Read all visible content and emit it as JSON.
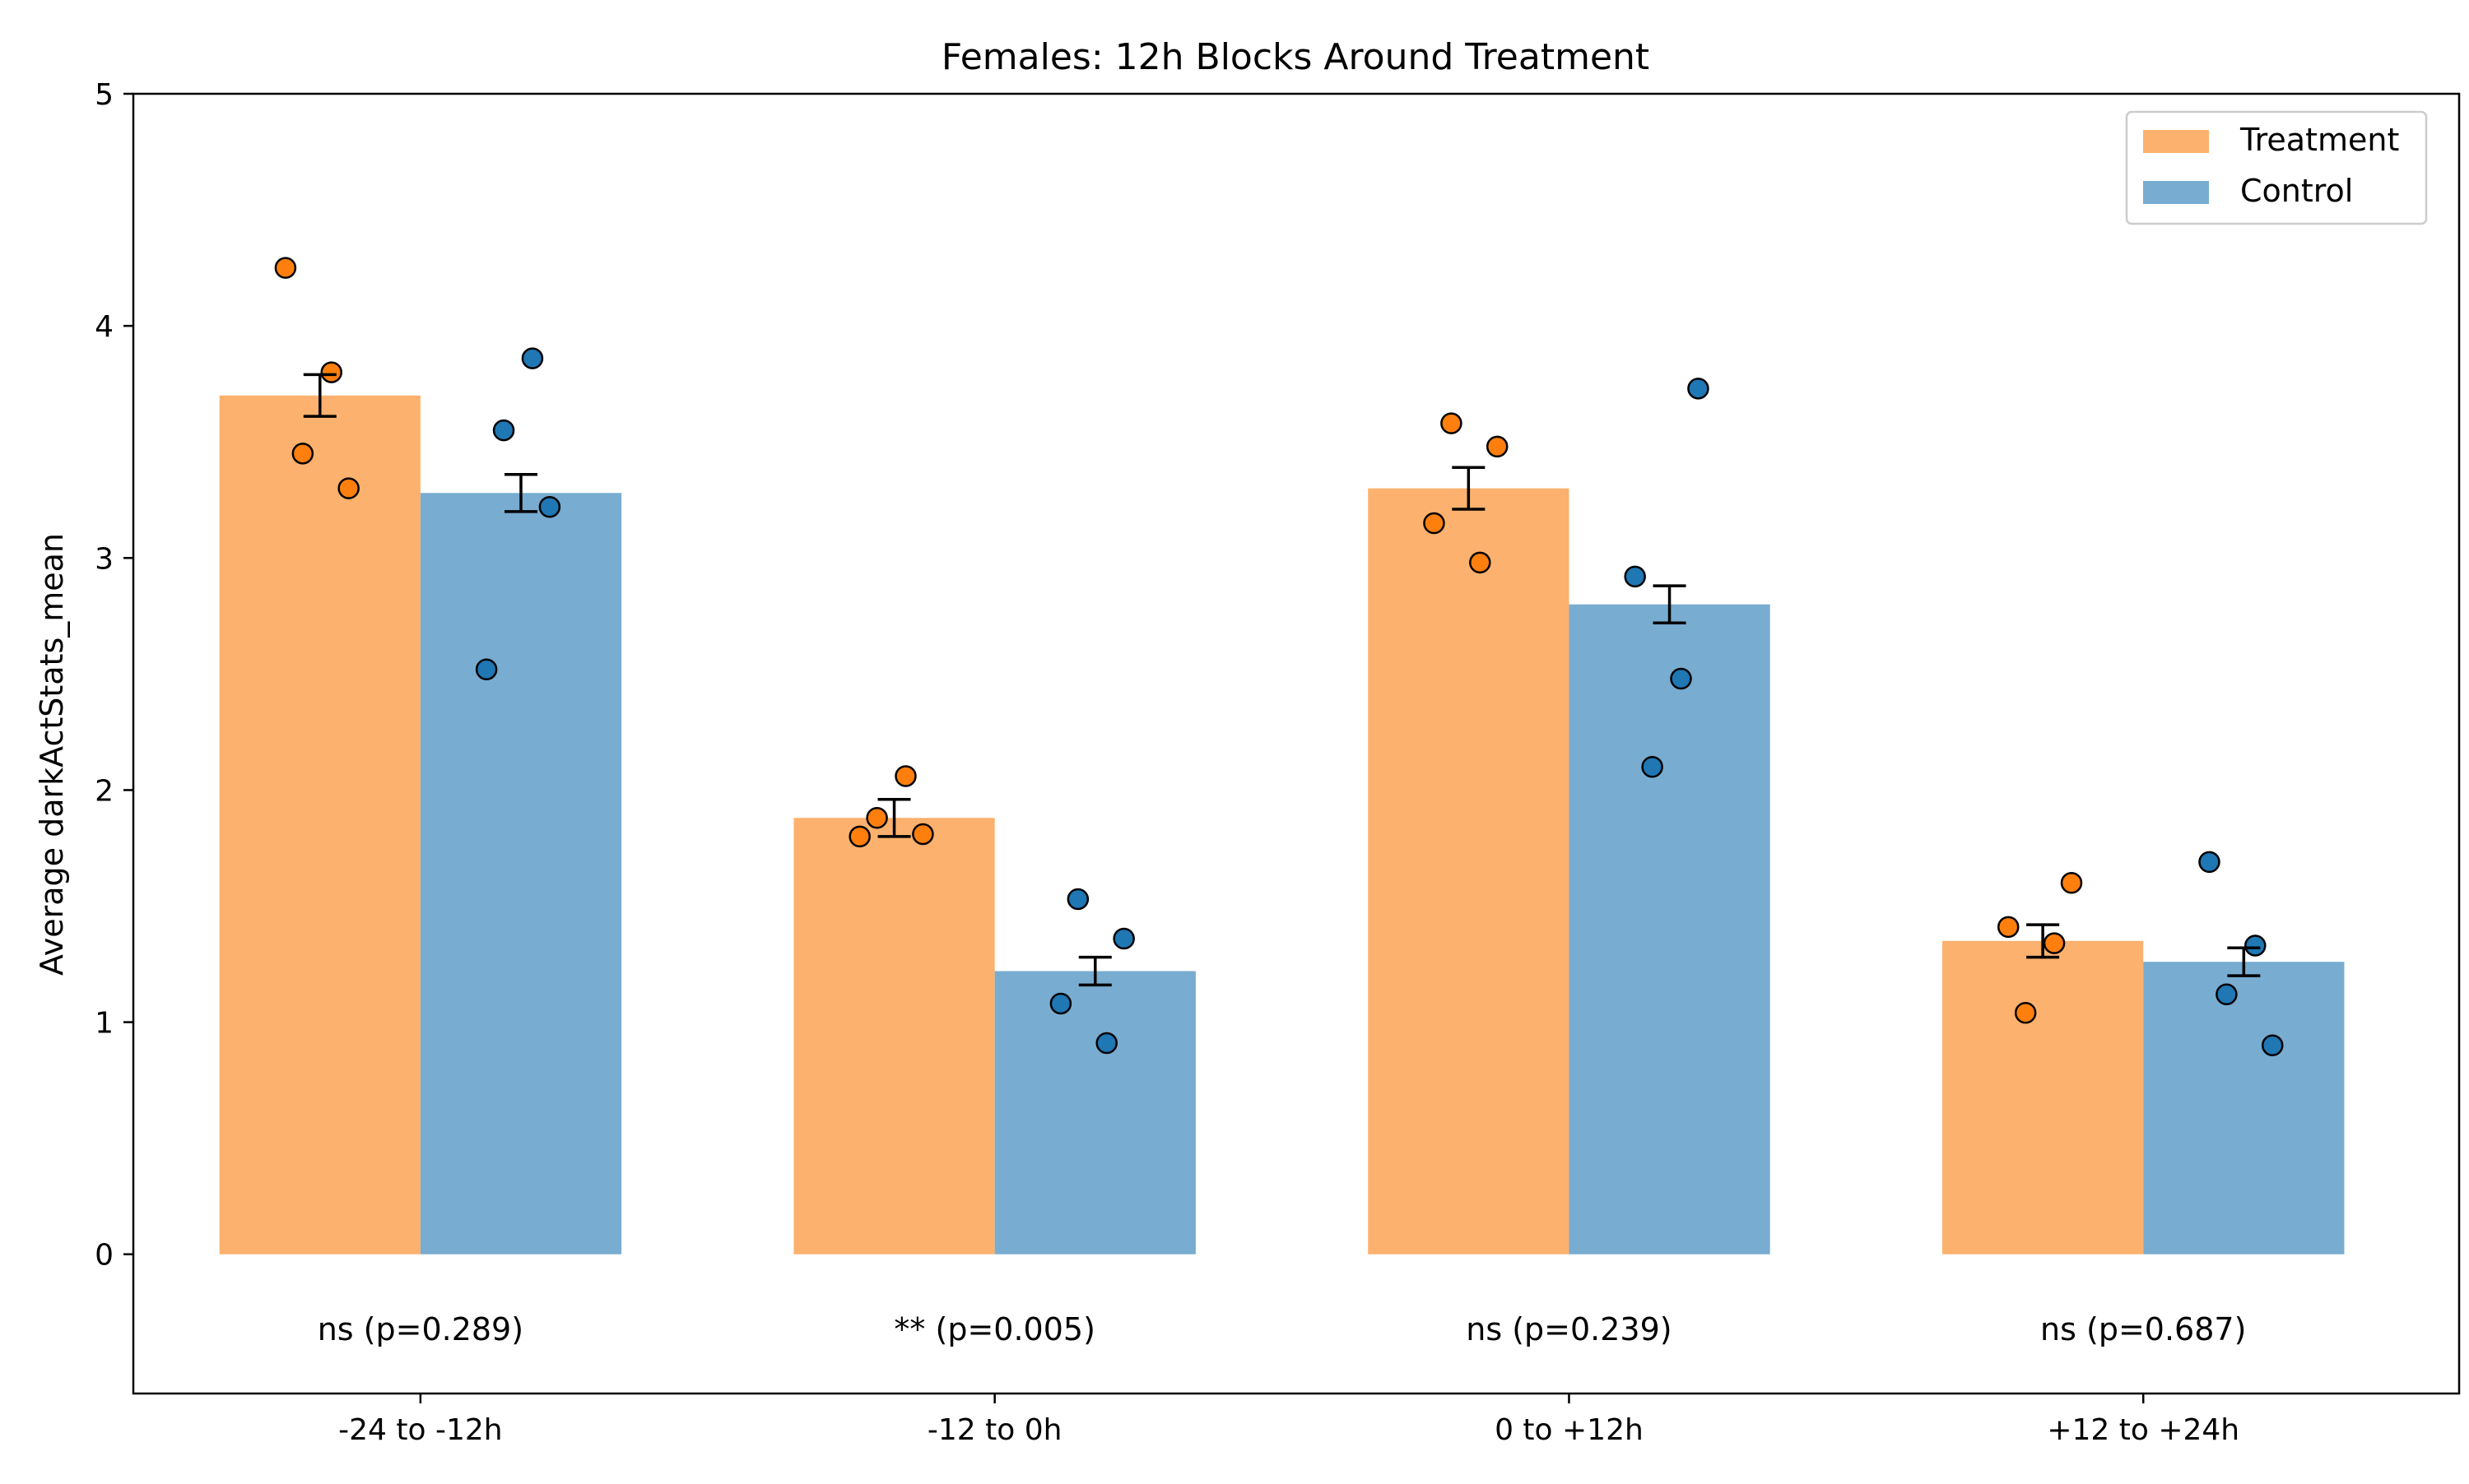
{
  "chart_data": {
    "type": "bar",
    "title": "Females: 12h Blocks Around Treatment",
    "xlabel": "",
    "ylabel": "Average darkActStats_mean",
    "ylim": [
      -0.6,
      5
    ],
    "yticks": [
      0,
      1,
      2,
      3,
      4,
      5
    ],
    "grid": false,
    "legend_position": "top-right",
    "categories": [
      "-24 to -12h",
      "-12 to 0h",
      "0 to +12h",
      "+12 to +24h"
    ],
    "series": [
      {
        "name": "Treatment",
        "bar_color": "#fdb16e",
        "point_color": "#ff7f0e",
        "values": [
          3.7,
          1.88,
          3.3,
          1.35
        ],
        "sem": [
          0.09,
          0.08,
          0.09,
          0.07
        ],
        "points": [
          [
            4.25,
            3.8,
            3.45,
            3.3
          ],
          [
            2.06,
            1.88,
            1.81,
            1.8
          ],
          [
            3.58,
            3.48,
            3.15,
            2.98
          ],
          [
            1.6,
            1.41,
            1.34,
            1.04
          ]
        ]
      },
      {
        "name": "Control",
        "bar_color": "#78acd1",
        "point_color": "#1f77b4",
        "values": [
          3.28,
          1.22,
          2.8,
          1.26
        ],
        "sem": [
          0.08,
          0.06,
          0.08,
          0.06
        ],
        "points": [
          [
            3.86,
            3.55,
            3.22,
            2.52
          ],
          [
            1.53,
            1.36,
            1.08,
            0.91
          ],
          [
            3.73,
            2.92,
            2.48,
            2.1
          ],
          [
            1.69,
            1.33,
            1.12,
            0.9
          ]
        ]
      }
    ],
    "annotations": [
      "ns (p=0.289)",
      "** (p=0.005)",
      "ns (p=0.239)",
      "ns (p=0.687)"
    ]
  }
}
